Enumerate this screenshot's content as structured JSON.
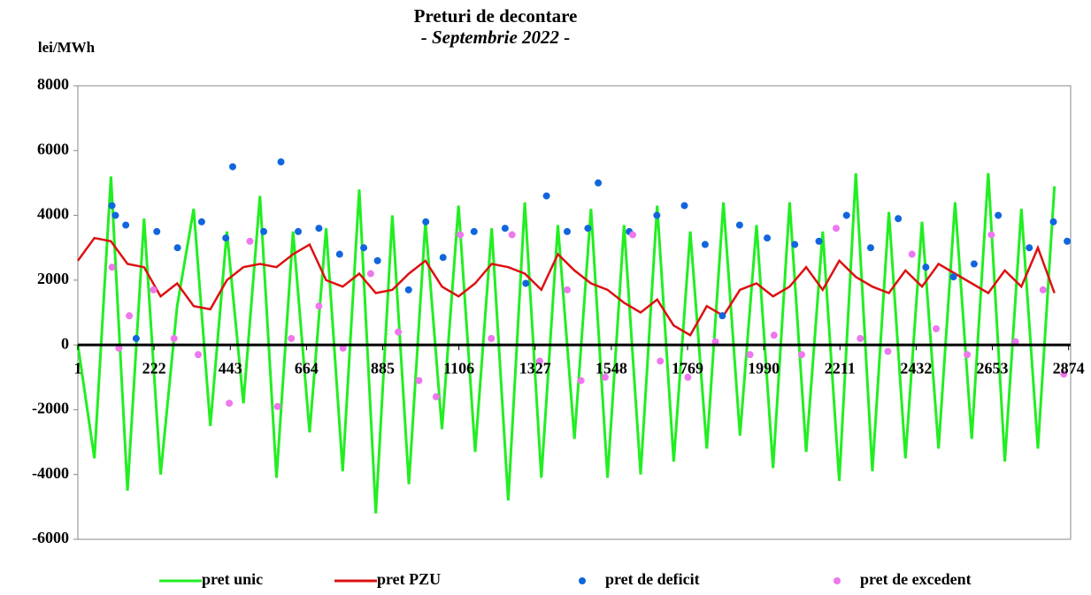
{
  "chart_data": {
    "type": "line",
    "title": "Preturi de decontare",
    "subtitle": "- Septembrie 2022 -",
    "y_label": "lei/MWh",
    "xlim": [
      1,
      2880
    ],
    "xticks": [
      1,
      222,
      443,
      664,
      885,
      1106,
      1327,
      1548,
      1769,
      1990,
      2211,
      2432,
      2653,
      2874
    ],
    "ylim": [
      -6000,
      8000
    ],
    "yticks": [
      -6000,
      -4000,
      -2000,
      0,
      2000,
      4000,
      6000,
      8000
    ],
    "x": [
      1,
      49,
      97,
      145,
      193,
      241,
      289,
      337,
      385,
      433,
      481,
      529,
      577,
      625,
      673,
      721,
      769,
      817,
      865,
      913,
      961,
      1009,
      1057,
      1105,
      1153,
      1201,
      1249,
      1297,
      1345,
      1393,
      1441,
      1489,
      1537,
      1585,
      1633,
      1681,
      1729,
      1777,
      1825,
      1873,
      1921,
      1969,
      2017,
      2065,
      2113,
      2161,
      2209,
      2257,
      2305,
      2353,
      2401,
      2449,
      2497,
      2545,
      2593,
      2641,
      2689,
      2737,
      2785,
      2833
    ],
    "series": [
      {
        "name": "pret unic",
        "color": "#22ee22",
        "style": "line",
        "values": [
          0,
          -3500,
          5200,
          -4500,
          3900,
          -4000,
          1200,
          4200,
          -2500,
          3500,
          -1800,
          4600,
          -4100,
          3500,
          -2700,
          3600,
          -3900,
          4800,
          -5200,
          4000,
          -4300,
          3800,
          -2600,
          4300,
          -3300,
          3600,
          -4800,
          4400,
          -4100,
          3700,
          -2900,
          4200,
          -4100,
          3700,
          -4000,
          4300,
          -3600,
          3500,
          -3200,
          4400,
          -2800,
          3700,
          -3800,
          4400,
          -3300,
          3500,
          -4200,
          5300,
          -3900,
          4100,
          -3500,
          3800,
          -3200,
          4400,
          -2900,
          5300,
          -3600,
          4200,
          -3200,
          4900
        ]
      },
      {
        "name": "pret PZU",
        "color": "#dd1111",
        "style": "line",
        "values": [
          2600,
          3300,
          3200,
          2500,
          2400,
          1500,
          1900,
          1200,
          1100,
          2000,
          2400,
          2500,
          2400,
          2800,
          3100,
          2000,
          1800,
          2200,
          1600,
          1700,
          2200,
          2600,
          1800,
          1500,
          1900,
          2500,
          2400,
          2200,
          1700,
          2800,
          2300,
          1900,
          1700,
          1300,
          1000,
          1400,
          600,
          300,
          1200,
          900,
          1700,
          1900,
          1500,
          1800,
          2400,
          1700,
          2600,
          2100,
          1800,
          1600,
          2300,
          1800,
          2500,
          2200,
          1900,
          1600,
          2300,
          1800,
          3000,
          1600
        ]
      },
      {
        "name": "pret de deficit",
        "color": "#1166dd",
        "style": "markers",
        "x": [
          100,
          110,
          140,
          170,
          230,
          290,
          360,
          430,
          450,
          540,
          590,
          640,
          700,
          760,
          830,
          870,
          960,
          1010,
          1060,
          1150,
          1240,
          1300,
          1360,
          1420,
          1480,
          1510,
          1600,
          1680,
          1760,
          1820,
          1870,
          1920,
          2000,
          2080,
          2150,
          2230,
          2300,
          2380,
          2460,
          2540,
          2600,
          2670,
          2760,
          2830,
          2870
        ],
        "values": [
          4300,
          4000,
          3700,
          200,
          3500,
          3000,
          3800,
          3300,
          5500,
          3500,
          5650,
          3500,
          3600,
          2800,
          3000,
          2600,
          1700,
          3800,
          2700,
          3500,
          3600,
          1900,
          4600,
          3500,
          3600,
          5000,
          3500,
          4000,
          4300,
          3100,
          900,
          3700,
          3300,
          3100,
          3200,
          4000,
          3000,
          3900,
          2400,
          2100,
          2500,
          4000,
          3000,
          3800,
          3200
        ]
      },
      {
        "name": "pret de excedent",
        "color": "#ee77ee",
        "style": "markers",
        "x": [
          100,
          120,
          150,
          220,
          280,
          350,
          440,
          500,
          580,
          620,
          700,
          770,
          850,
          930,
          990,
          1040,
          1110,
          1200,
          1260,
          1340,
          1420,
          1460,
          1530,
          1610,
          1690,
          1770,
          1850,
          1950,
          2020,
          2100,
          2200,
          2270,
          2350,
          2420,
          2490,
          2580,
          2650,
          2720,
          2800,
          2860
        ],
        "values": [
          2400,
          -100,
          900,
          1700,
          200,
          -300,
          -1800,
          3200,
          -1900,
          200,
          1200,
          -100,
          2200,
          400,
          -1100,
          -1600,
          3400,
          200,
          3400,
          -500,
          1700,
          -1100,
          -1000,
          3400,
          -500,
          -1000,
          100,
          -300,
          300,
          -300,
          3600,
          200,
          -200,
          2800,
          500,
          -300,
          3400,
          100,
          1700,
          -900
        ]
      }
    ]
  }
}
